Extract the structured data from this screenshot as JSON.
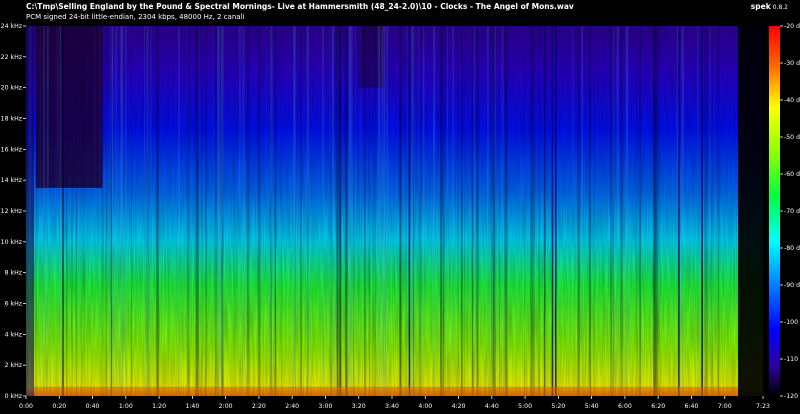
{
  "header": {
    "file_path": "C:\\Tmp\\Selling England by the Pound & Spectral Mornings- Live at Hammersmith (48_24-2.0)\\10 - Clocks - The Angel of Mons.wav",
    "stream_info": "PCM signed 24-bit little-endian, 2304 kbps, 48000 Hz, 2 canali"
  },
  "app": {
    "name": "spek",
    "version": "0.8.2"
  },
  "chart_data": {
    "type": "heatmap",
    "freq_axis": {
      "ticks": [
        "0 kHz",
        "2 kHz",
        "4 kHz",
        "6 kHz",
        "8 kHz",
        "10 kHz",
        "12 kHz",
        "14 kHz",
        "16 kHz",
        "18 kHz",
        "20 kHz",
        "22 kHz",
        "24 kHz"
      ],
      "values": [
        0,
        2,
        4,
        6,
        8,
        10,
        12,
        14,
        16,
        18,
        20,
        22,
        24
      ]
    },
    "time_axis": {
      "ticks": [
        "0:00",
        "0:20",
        "0:40",
        "1:00",
        "1:20",
        "1:40",
        "2:00",
        "2:20",
        "2:40",
        "3:00",
        "3:20",
        "3:40",
        "4:00",
        "4:20",
        "4:40",
        "5:00",
        "5:20",
        "5:40",
        "6:00",
        "6:20",
        "6:40",
        "7:00",
        "7:23"
      ],
      "seconds": [
        0,
        20,
        40,
        60,
        80,
        100,
        120,
        140,
        160,
        180,
        200,
        220,
        240,
        260,
        280,
        300,
        320,
        340,
        360,
        380,
        400,
        420,
        443
      ]
    },
    "level_axis": {
      "ticks": [
        "-20 dB",
        "-30 dB",
        "-40 dB",
        "-50 dB",
        "-60 dB",
        "-70 dB",
        "-80 dB",
        "-90 dB",
        "-100 dB",
        "-110 dB",
        "-120 dB"
      ],
      "values": [
        -20,
        -30,
        -40,
        -50,
        -60,
        -70,
        -80,
        -90,
        -100,
        -110,
        -120
      ]
    },
    "palette": [
      "#ff0000",
      "#ff7f00",
      "#ffff00",
      "#7fff00",
      "#00ff00",
      "#00ffff",
      "#0080ff",
      "#0000ff",
      "#4000c0",
      "#200060",
      "#000000"
    ]
  }
}
